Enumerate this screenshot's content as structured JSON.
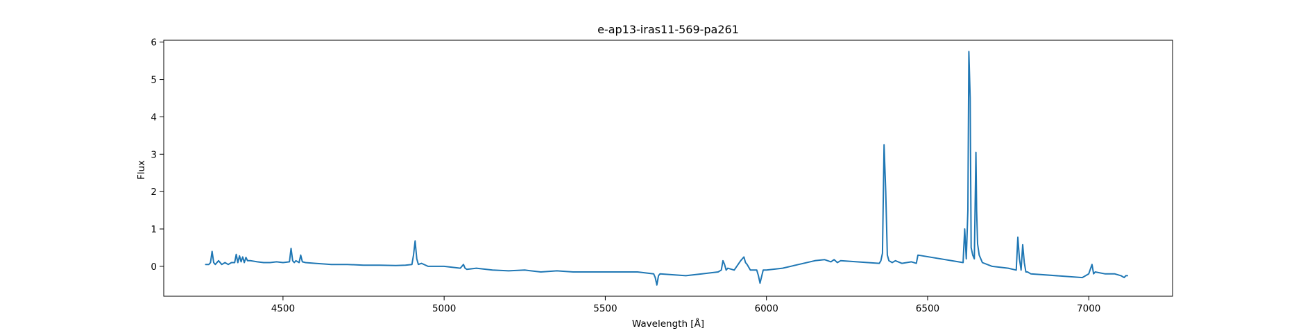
{
  "chart_data": {
    "type": "line",
    "title": "e-ap13-iras11-569-pa261",
    "xlabel": "Wavelength [Å]",
    "ylabel": "Flux",
    "xlim": [
      4130,
      7260
    ],
    "ylim": [
      -0.8,
      6.05
    ],
    "xticks": [
      4500,
      5000,
      5500,
      6000,
      6500,
      7000
    ],
    "xtick_labels": [
      "4500",
      "5000",
      "5500",
      "6000",
      "6500",
      "7000"
    ],
    "yticks": [
      0,
      1,
      2,
      3,
      4,
      5,
      6
    ],
    "ytick_labels": [
      "0",
      "1",
      "2",
      "3",
      "4",
      "5",
      "6"
    ],
    "grid": false,
    "legend": "none",
    "line_color": "#1f77b4",
    "series": [
      {
        "x": [
          4260,
          4270,
          4275,
          4280,
          4285,
          4290,
          4300,
          4310,
          4320,
          4330,
          4340,
          4350,
          4355,
          4360,
          4365,
          4370,
          4375,
          4380,
          4385,
          4390,
          4400,
          4420,
          4440,
          4460,
          4480,
          4500,
          4520,
          4525,
          4530,
          4535,
          4540,
          4550,
          4555,
          4560,
          4570,
          4600,
          4650,
          4700,
          4750,
          4800,
          4850,
          4880,
          4900,
          4905,
          4910,
          4915,
          4920,
          4930,
          4950,
          5000,
          5050,
          5060,
          5065,
          5070,
          5100,
          5150,
          5200,
          5250,
          5300,
          5350,
          5400,
          5450,
          5500,
          5550,
          5600,
          5650,
          5655,
          5660,
          5665,
          5670,
          5700,
          5750,
          5800,
          5850,
          5860,
          5865,
          5870,
          5875,
          5880,
          5900,
          5920,
          5930,
          5935,
          5940,
          5950,
          5970,
          5975,
          5980,
          5990,
          6000,
          6050,
          6100,
          6150,
          6180,
          6200,
          6210,
          6220,
          6230,
          6350,
          6355,
          6360,
          6365,
          6370,
          6375,
          6380,
          6390,
          6400,
          6420,
          6450,
          6465,
          6470,
          6610,
          6615,
          6620,
          6625,
          6628,
          6632,
          6635,
          6640,
          6645,
          6650,
          6652,
          6655,
          6660,
          6670,
          6700,
          6750,
          6775,
          6780,
          6785,
          6790,
          6795,
          6800,
          6805,
          6810,
          6820,
          6980,
          7000,
          7010,
          7015,
          7020,
          7050,
          7080,
          7100,
          7110,
          7115,
          7120
        ],
        "y": [
          0.05,
          0.05,
          0.1,
          0.4,
          0.1,
          0.05,
          0.15,
          0.05,
          0.1,
          0.05,
          0.1,
          0.1,
          0.32,
          0.1,
          0.28,
          0.12,
          0.25,
          0.1,
          0.24,
          0.15,
          0.15,
          0.12,
          0.1,
          0.1,
          0.12,
          0.1,
          0.12,
          0.48,
          0.15,
          0.1,
          0.15,
          0.1,
          0.3,
          0.12,
          0.1,
          0.08,
          0.05,
          0.05,
          0.03,
          0.03,
          0.02,
          0.03,
          0.05,
          0.3,
          0.68,
          0.2,
          0.05,
          0.08,
          0.0,
          0.0,
          -0.05,
          0.05,
          -0.05,
          -0.08,
          -0.05,
          -0.1,
          -0.12,
          -0.1,
          -0.15,
          -0.12,
          -0.15,
          -0.15,
          -0.15,
          -0.15,
          -0.15,
          -0.2,
          -0.3,
          -0.5,
          -0.25,
          -0.2,
          -0.22,
          -0.25,
          -0.2,
          -0.15,
          -0.1,
          0.15,
          0.05,
          -0.1,
          -0.05,
          -0.1,
          0.15,
          0.25,
          0.1,
          0.05,
          -0.1,
          -0.1,
          -0.25,
          -0.45,
          -0.1,
          -0.1,
          -0.05,
          0.05,
          0.15,
          0.18,
          0.12,
          0.18,
          0.1,
          0.15,
          0.08,
          0.15,
          0.35,
          3.25,
          2.0,
          0.3,
          0.15,
          0.1,
          0.15,
          0.08,
          0.12,
          0.08,
          0.3,
          0.1,
          1.0,
          0.2,
          1.5,
          5.75,
          4.5,
          0.5,
          0.3,
          0.2,
          3.05,
          1.5,
          0.6,
          0.3,
          0.1,
          0.0,
          -0.05,
          -0.1,
          0.78,
          0.2,
          -0.1,
          0.58,
          0.1,
          -0.15,
          -0.15,
          -0.2,
          -0.3,
          -0.2,
          0.05,
          -0.2,
          -0.15,
          -0.2,
          -0.2,
          -0.25,
          -0.3,
          -0.25,
          -0.25
        ]
      }
    ]
  }
}
